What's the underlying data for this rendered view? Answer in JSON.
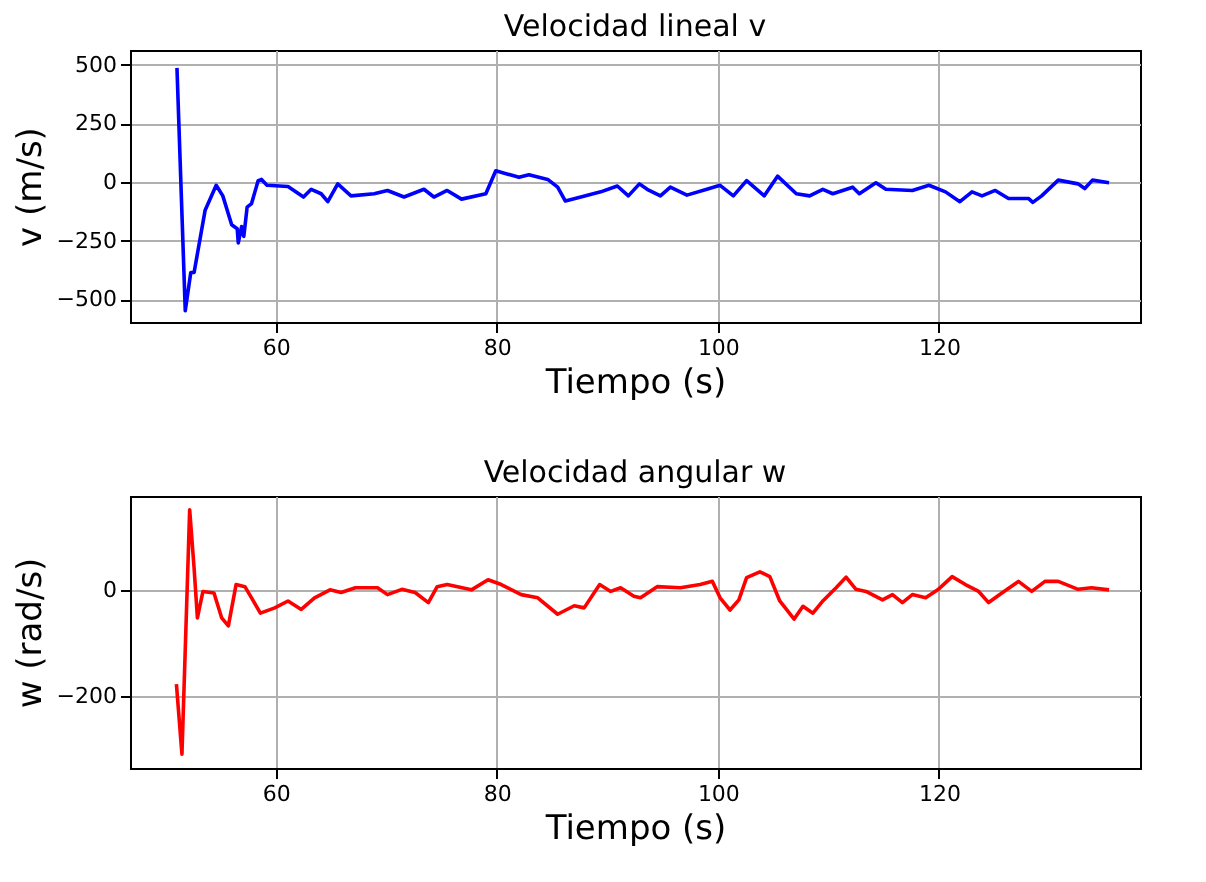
{
  "chart_data": [
    {
      "type": "line",
      "title": "Velocidad lineal v",
      "xlabel": "Tiempo (s)",
      "ylabel": "v (m/s)",
      "grid": true,
      "xlim": [
        46.8,
        138.2
      ],
      "ylim": [
        -597,
        563
      ],
      "xticks": [
        60,
        80,
        100,
        120
      ],
      "yticks": [
        -500,
        -250,
        0,
        250,
        500
      ],
      "series": [
        {
          "color": "#0000ff",
          "x": [
            51.05,
            51.8,
            52.3,
            52.6,
            53.6,
            54.6,
            55.2,
            56.0,
            56.5,
            56.6,
            56.9,
            57.1,
            57.4,
            57.8,
            58.4,
            58.7,
            59.2,
            61.1,
            62.5,
            63.2,
            64.1,
            64.7,
            65.6,
            66.8,
            68.9,
            70.1,
            71.6,
            73.4,
            74.3,
            75.5,
            76.8,
            79.0,
            79.9,
            82.0,
            82.9,
            84.6,
            85.5,
            86.2,
            87.6,
            89.4,
            90.9,
            91.9,
            92.9,
            93.6,
            94.8,
            95.7,
            97.2,
            99.0,
            100.2,
            101.4,
            102.6,
            104.2,
            105.4,
            107.1,
            108.3,
            109.5,
            110.4,
            112.2,
            112.8,
            114.3,
            115.2,
            117.6,
            119.1,
            120.6,
            121.9,
            123.0,
            123.9,
            125.1,
            126.3,
            128.1,
            128.5,
            129.3,
            130.8,
            132.6,
            133.2,
            133.9,
            135.4
          ],
          "values": [
            487,
            -549,
            -386,
            -386,
            -120,
            -14,
            -59,
            -182,
            -199,
            -260,
            -190,
            -232,
            -107,
            -92,
            6,
            11,
            -14,
            -19,
            -64,
            -31,
            -50,
            -84,
            -8,
            -59,
            -50,
            -36,
            -64,
            -31,
            -64,
            -36,
            -73,
            -50,
            48,
            20,
            31,
            11,
            -22,
            -81,
            -64,
            -42,
            -17,
            -59,
            -8,
            -31,
            -59,
            -22,
            -56,
            -31,
            -14,
            -59,
            6,
            -59,
            25,
            -50,
            -59,
            -31,
            -50,
            -22,
            -50,
            -3,
            -31,
            -36,
            -14,
            -42,
            -84,
            -42,
            -59,
            -36,
            -70,
            -70,
            -87,
            -59,
            8,
            -8,
            -28,
            8,
            -3
          ]
        }
      ]
    },
    {
      "type": "line",
      "title": "Velocidad angular w",
      "xlabel": "Tiempo (s)",
      "ylabel": "w (rad/s)",
      "grid": true,
      "xlim": [
        46.8,
        138.2
      ],
      "ylim": [
        -336,
        177
      ],
      "xticks": [
        60,
        80,
        100,
        120
      ],
      "yticks": [
        -200,
        0
      ],
      "series": [
        {
          "color": "#ff0000",
          "x": [
            51.0,
            51.5,
            52.2,
            52.6,
            52.9,
            53.4,
            54.4,
            55.1,
            55.7,
            56.4,
            57.2,
            57.8,
            58.6,
            59.9,
            61.1,
            62.3,
            63.5,
            64.9,
            65.9,
            67.2,
            69.2,
            70.1,
            71.4,
            72.6,
            73.8,
            74.6,
            75.5,
            77.7,
            79.2,
            80.4,
            82.2,
            83.7,
            85.5,
            87.0,
            87.9,
            89.3,
            90.3,
            91.2,
            92.4,
            93.0,
            94.5,
            96.6,
            98.4,
            99.5,
            100.2,
            101.1,
            101.9,
            102.6,
            103.8,
            104.7,
            105.6,
            106.9,
            107.7,
            108.6,
            109.5,
            110.7,
            111.6,
            112.5,
            113.4,
            114.9,
            115.8,
            116.7,
            117.6,
            118.8,
            119.9,
            121.2,
            122.4,
            123.6,
            124.5,
            125.7,
            127.2,
            128.4,
            129.6,
            130.8,
            132.6,
            133.8,
            135.4
          ],
          "values": [
            -178,
            -310,
            151,
            41,
            -53,
            -3,
            -6,
            -53,
            -68,
            10,
            6,
            -15,
            -44,
            -34,
            -21,
            -37,
            -15,
            0,
            -5,
            4,
            4,
            -9,
            1,
            -5,
            -24,
            6,
            10,
            0,
            19,
            10,
            -9,
            -15,
            -46,
            -30,
            -34,
            10,
            -3,
            4,
            -12,
            -15,
            6,
            4,
            10,
            16,
            -15,
            -38,
            -19,
            23,
            34,
            25,
            -21,
            -55,
            -31,
            -44,
            -21,
            4,
            24,
            1,
            -3,
            -19,
            -9,
            -24,
            -9,
            -15,
            0,
            25,
            10,
            -3,
            -24,
            -6,
            16,
            -3,
            16,
            16,
            1,
            4,
            0
          ]
        }
      ]
    }
  ]
}
